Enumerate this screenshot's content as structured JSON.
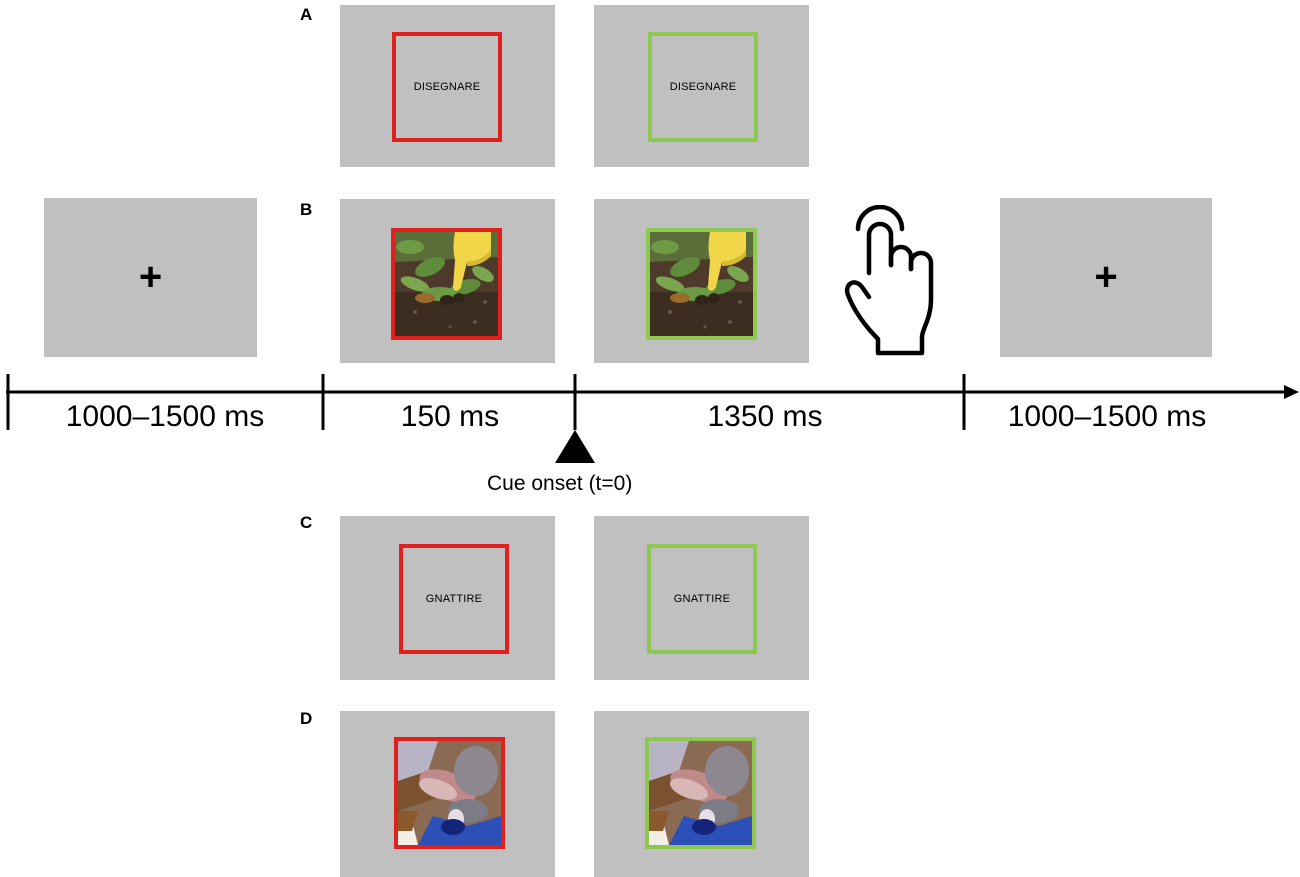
{
  "panels": {
    "a": {
      "letter": "A",
      "word": "DISEGNARE"
    },
    "b": {
      "letter": "B"
    },
    "c": {
      "letter": "C",
      "word": "GNATTIRE"
    },
    "d": {
      "letter": "D"
    }
  },
  "fixation_symbol": "+",
  "timeline": {
    "segments": [
      {
        "label": "1000–1500 ms"
      },
      {
        "label": "150 ms"
      },
      {
        "label": "1350 ms"
      },
      {
        "label": "1000–1500 ms"
      }
    ],
    "cue_label": "Cue onset (t=0)"
  },
  "colors": {
    "screen_gray": "#c0c0c0",
    "cue_red": "#e0201c",
    "go_green": "#8dc850",
    "axis": "#000000"
  },
  "icons": [
    "hand-tap-icon",
    "cue-onset-triangle-icon"
  ]
}
